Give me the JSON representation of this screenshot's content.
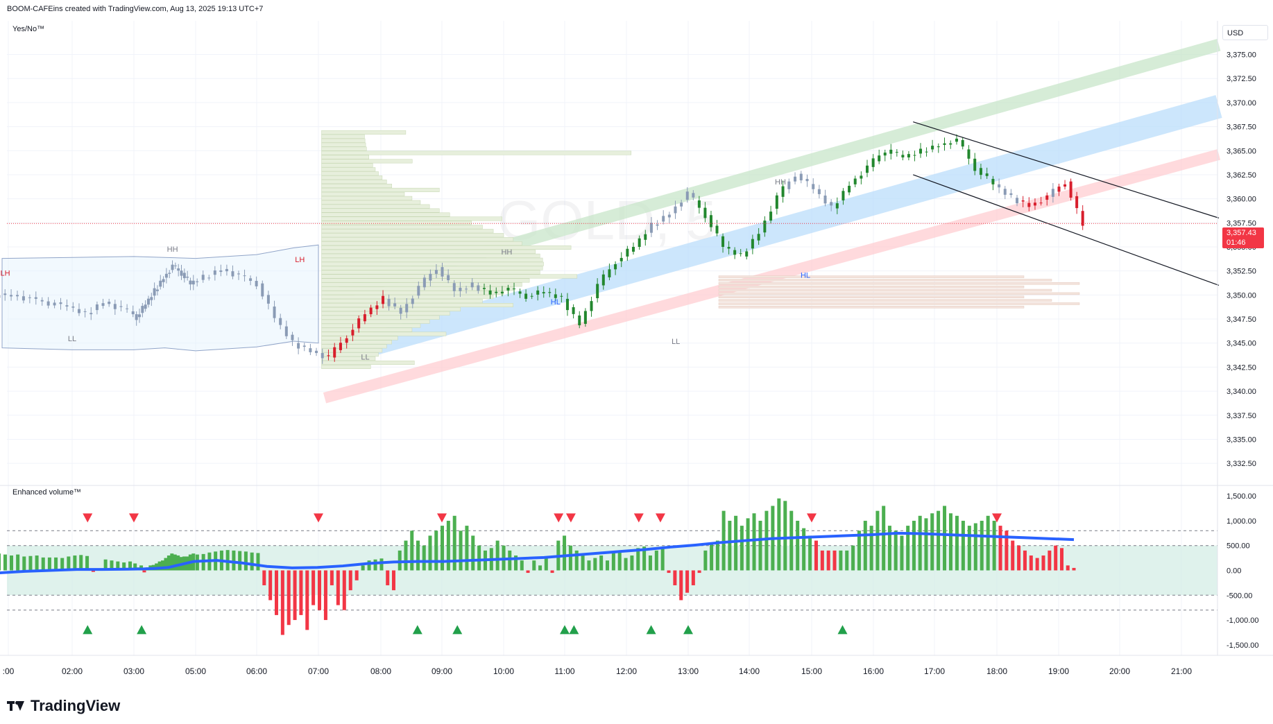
{
  "header": {
    "caption": "BOOM-CAFEins created with TradingView.com, Aug 13, 2025 19:13 UTC+7",
    "main_pane_label": "Yes/No™",
    "volume_pane_label": "Enhanced volume™",
    "currency": "USD",
    "watermark": "GOLD, 5"
  },
  "last_price": {
    "value": "3,357.43",
    "countdown": "01:46",
    "color": "#f23645"
  },
  "footer": {
    "brand": "TradingView"
  },
  "colors": {
    "up": "#22872e",
    "down": "#d81e2c",
    "neutral": "#8a9bb5",
    "vol_up": "#4caf50",
    "vol_down": "#f23645",
    "vol_ma": "#2962ff",
    "channel_green": "#c8e6c9",
    "channel_blue": "#bbdefb",
    "channel_red": "#ffcdd2"
  },
  "chart_data": [
    {
      "type": "candlestick",
      "title": "",
      "x_ticks": [
        ":00",
        "02:00",
        "03:00",
        "05:00",
        "06:00",
        "07:00",
        "08:00",
        "09:00",
        "10:00",
        "11:00",
        "12:00",
        "13:00",
        "14:00",
        "15:00",
        "16:00",
        "17:00",
        "18:00",
        "19:00",
        "20:00",
        "21:00"
      ],
      "y_ticks": [
        "3,375.00",
        "3,372.50",
        "3,370.00",
        "3,367.50",
        "3,365.00",
        "3,362.50",
        "3,360.00",
        "3,357.50",
        "3,355.00",
        "3,352.50",
        "3,350.00",
        "3,347.50",
        "3,345.00",
        "3,342.50",
        "3,340.00",
        "3,337.50",
        "3,335.00",
        "3,332.50"
      ],
      "ylim": [
        3331.5,
        3378.5
      ],
      "series": [
        {
          "name": "GOLD, 5",
          "close_path": [
            [
              0,
              3350.0
            ],
            [
              1,
              3349.6
            ],
            [
              2,
              3349.2
            ],
            [
              3,
              3348.8
            ],
            [
              4,
              3348.0
            ],
            [
              5,
              3349.3
            ],
            [
              6,
              3348.6
            ],
            [
              7,
              3347.7
            ],
            [
              8,
              3349.0
            ],
            [
              9,
              3350.4
            ],
            [
              10,
              3351.8
            ],
            [
              11,
              3353.0
            ],
            [
              12,
              3352.3
            ],
            [
              13,
              3351.1
            ],
            [
              14,
              3351.8
            ],
            [
              15,
              3352.7
            ],
            [
              16,
              3352.0
            ],
            [
              17,
              3351.2
            ],
            [
              18,
              3347.6
            ],
            [
              19,
              3345.0
            ],
            [
              20,
              3344.2
            ],
            [
              21,
              3343.5
            ],
            [
              22,
              3345.8
            ],
            [
              23,
              3348.0
            ],
            [
              24,
              3349.6
            ],
            [
              25,
              3348.2
            ],
            [
              26,
              3350.8
            ],
            [
              27,
              3352.9
            ],
            [
              28,
              3350.4
            ],
            [
              29,
              3351.0
            ],
            [
              30,
              3350.2
            ],
            [
              31,
              3350.6
            ],
            [
              32,
              3349.9
            ],
            [
              33,
              3350.3
            ],
            [
              34,
              3349.6
            ],
            [
              35,
              3347.0
            ],
            [
              36,
              3351.0
            ],
            [
              37,
              3353.5
            ],
            [
              38,
              3355.0
            ],
            [
              39,
              3357.2
            ],
            [
              40,
              3358.5
            ],
            [
              41,
              3360.6
            ],
            [
              42,
              3358.3
            ],
            [
              43,
              3355.0
            ],
            [
              44,
              3354.0
            ],
            [
              45,
              3356.5
            ],
            [
              46,
              3360.2
            ],
            [
              47,
              3362.6
            ],
            [
              48,
              3361.0
            ],
            [
              49,
              3359.0
            ],
            [
              50,
              3361.5
            ],
            [
              51,
              3363.3
            ],
            [
              52,
              3365.1
            ],
            [
              53,
              3364.3
            ],
            [
              54,
              3364.9
            ],
            [
              55,
              3365.6
            ],
            [
              56,
              3366.1
            ],
            [
              57,
              3363.2
            ],
            [
              58,
              3361.5
            ],
            [
              59,
              3360.1
            ],
            [
              60,
              3359.3
            ],
            [
              61,
              3360.2
            ],
            [
              62,
              3361.8
            ],
            [
              63,
              3357.2
            ]
          ]
        }
      ],
      "patterns": [
        "HH",
        "LH",
        "LL",
        "HH",
        "LL",
        "HL",
        "HH",
        "LL",
        "HL",
        "LH"
      ],
      "last_price": 3357.43
    },
    {
      "type": "bar",
      "title": "Enhanced volume™",
      "y_ticks": [
        "1,500.00",
        "1,000.00",
        "500.00",
        "0.00",
        "-500.00",
        "-1,000.00",
        "-1,500.00"
      ],
      "ylim": [
        -1600,
        1600
      ],
      "reference_levels": [
        800,
        500,
        -500,
        -800
      ],
      "values": [
        340,
        320,
        300,
        320,
        280,
        290,
        300,
        260,
        260,
        260,
        250,
        280,
        300,
        310,
        290,
        -30,
        40,
        220,
        200,
        180,
        160,
        180,
        140,
        60,
        100,
        -40,
        60,
        100,
        110,
        140,
        180,
        200,
        250,
        300,
        340,
        320,
        300,
        270,
        280,
        280,
        320,
        340,
        320,
        330,
        360,
        380,
        400,
        410,
        400,
        390,
        380,
        360,
        350,
        -300,
        -600,
        -900,
        -1300,
        -1100,
        -1000,
        -900,
        -1200,
        -700,
        -800,
        -1000,
        -300,
        -700,
        -800,
        -400,
        -200,
        100,
        200,
        220,
        240,
        -300,
        -400,
        400,
        600,
        800,
        600,
        500,
        700,
        800,
        900,
        1000,
        1100,
        800,
        900,
        700,
        500,
        400,
        450,
        600,
        500,
        400,
        300,
        200,
        -50,
        200,
        100,
        250,
        -50,
        600,
        700,
        500,
        400,
        300,
        200,
        250,
        300,
        200,
        350,
        400,
        250,
        300,
        450,
        480,
        300,
        400,
        450,
        -50,
        -300,
        -600,
        -450,
        -300,
        -50,
        400,
        550,
        600,
        1200,
        1000,
        1100,
        900,
        1050,
        1150,
        1000,
        1200,
        1300,
        1450,
        1400,
        1200,
        1000,
        850,
        700,
        600,
        400,
        400,
        400,
        400,
        400,
        500,
        800,
        1000,
        900,
        1200,
        1300,
        900,
        800,
        700,
        900,
        1000,
        1100,
        1050,
        1150,
        1200,
        1300,
        1150,
        1100,
        1000,
        900,
        950,
        1000,
        1100,
        1000,
        900,
        800,
        600,
        500,
        400,
        300,
        250,
        300,
        400,
        500,
        450,
        100,
        50
      ],
      "ma_values": [
        -50,
        -20,
        0,
        20,
        20,
        25,
        30,
        40,
        60,
        120,
        180,
        200,
        150,
        80,
        50,
        60,
        90,
        140,
        170,
        180,
        180,
        200,
        220,
        240,
        260,
        300,
        340,
        380,
        420,
        470,
        510,
        560,
        600,
        640,
        660,
        680,
        700,
        720,
        750,
        740,
        720,
        700,
        680,
        660,
        640,
        620
      ],
      "sell_signal_hours": [
        2.25,
        3.0,
        7.0,
        9.0,
        10.9,
        11.1,
        12.2,
        12.55,
        15.0,
        18.0
      ],
      "buy_signal_hours": [
        2.25,
        3.25,
        8.6,
        9.25,
        11.0,
        11.15,
        12.4,
        13.0,
        15.5
      ]
    }
  ]
}
